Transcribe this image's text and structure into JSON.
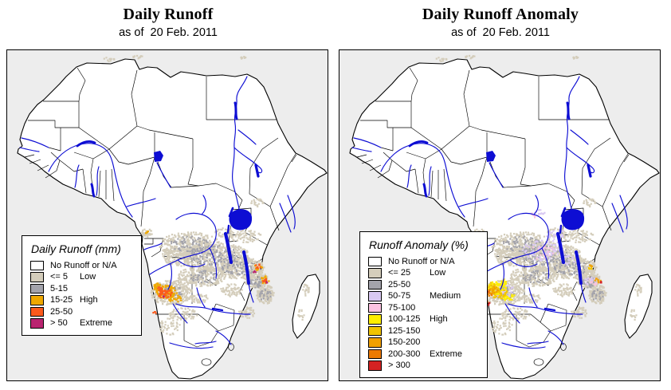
{
  "panels": [
    {
      "title": "Daily Runoff",
      "subtitle": "as of  20 Feb. 2011",
      "legend": {
        "title": "Daily Runoff (mm)",
        "entries": [
          {
            "range": "No Runoff or N/A",
            "qualifier": "",
            "color": "#ffffff"
          },
          {
            "range": "<= 5",
            "qualifier": "Low",
            "color": "#d4cdbb"
          },
          {
            "range": "5-15",
            "qualifier": "",
            "color": "#a3a3ab"
          },
          {
            "range": "15-25",
            "qualifier": "High",
            "color": "#efa800"
          },
          {
            "range": "25-50",
            "qualifier": "",
            "color": "#fb5a1c"
          },
          {
            "range": "> 50",
            "qualifier": "Extreme",
            "color": "#b92470"
          }
        ]
      }
    },
    {
      "title": "Daily Runoff Anomaly",
      "subtitle": "as of  20 Feb. 2011",
      "legend": {
        "title": "Runoff Anomaly (%)",
        "entries": [
          {
            "range": "No Runoff or N/A",
            "qualifier": "",
            "color": "#ffffff"
          },
          {
            "range": "<= 25",
            "qualifier": "Low",
            "color": "#d4cdbb"
          },
          {
            "range": "25-50",
            "qualifier": "",
            "color": "#a3a3ab"
          },
          {
            "range": "50-75",
            "qualifier": "Medium",
            "color": "#d9c9f2"
          },
          {
            "range": "75-100",
            "qualifier": "",
            "color": "#fbc3e1"
          },
          {
            "range": "100-125",
            "qualifier": "High",
            "color": "#feee00"
          },
          {
            "range": "125-150",
            "qualifier": "",
            "color": "#f1c400"
          },
          {
            "range": "150-200",
            "qualifier": "",
            "color": "#f0a000"
          },
          {
            "range": "200-300",
            "qualifier": "Extreme",
            "color": "#ed7a00"
          },
          {
            "range": "> 300",
            "qualifier": "",
            "color": "#d42222"
          }
        ]
      }
    }
  ],
  "map": {
    "ocean_color": "#ededed",
    "land_color": "#ffffff",
    "outline_color": "#000000",
    "water_color": "#0d0dd3"
  }
}
